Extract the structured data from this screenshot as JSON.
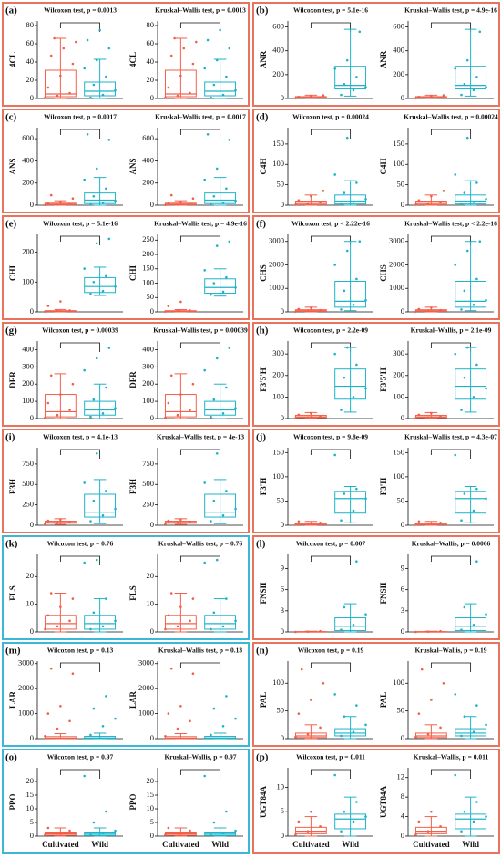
{
  "chart_data": [
    {
      "type": "box",
      "label": "(a)",
      "border": "#e9735c",
      "ylabel": "4CL",
      "plots": [
        {
          "title": "Wilcoxon test, p = 0.0013",
          "ylim": [
            0,
            85
          ],
          "yticks": [
            0,
            20,
            40,
            60,
            80
          ]
        },
        {
          "title": "Kruskal–Wallis test, p = 0.0013",
          "ylim": [
            0,
            85
          ],
          "yticks": [
            0,
            20,
            40,
            60,
            80
          ]
        }
      ],
      "series": [
        {
          "color": "#f2604a",
          "box": [
            0,
            2,
            5,
            31,
            66
          ],
          "points": [
            1,
            3,
            6,
            12,
            25,
            38,
            47,
            55,
            62,
            66
          ]
        },
        {
          "color": "#1fb3c8",
          "box": [
            0,
            3,
            8,
            18,
            43
          ],
          "points": [
            1,
            4,
            9,
            15,
            24,
            33,
            42,
            55,
            64,
            75
          ]
        }
      ]
    },
    {
      "type": "box",
      "label": "(b)",
      "border": "#e9735c",
      "ylabel": "ANR",
      "plots": [
        {
          "title": "Wilcoxon test, p = 5.1e-16",
          "ylim": [
            0,
            650
          ],
          "yticks": [
            0,
            200,
            400,
            600
          ]
        },
        {
          "title": "Kruskal–Wallis test, p = 4.9e-16",
          "ylim": [
            0,
            650
          ],
          "yticks": [
            0,
            200,
            400,
            600
          ]
        }
      ],
      "series": [
        {
          "color": "#f2604a",
          "box": [
            2,
            6,
            10,
            16,
            28
          ],
          "points": [
            3,
            7,
            10,
            14,
            20,
            26
          ]
        },
        {
          "color": "#1fb3c8",
          "box": [
            20,
            80,
            110,
            270,
            580
          ],
          "points": [
            30,
            70,
            95,
            120,
            180,
            250,
            320,
            560
          ]
        }
      ]
    },
    {
      "type": "box",
      "label": "(c)",
      "border": "#e9735c",
      "ylabel": "ANS",
      "plots": [
        {
          "title": "Wilcoxon test, p = 0.0017",
          "ylim": [
            0,
            700
          ],
          "yticks": [
            0,
            200,
            400,
            600
          ]
        },
        {
          "title": "Kruskal–Wallis test, p = 0.0017",
          "ylim": [
            0,
            700
          ],
          "yticks": [
            0,
            200,
            400,
            600
          ]
        }
      ],
      "series": [
        {
          "color": "#f2604a",
          "box": [
            0,
            3,
            8,
            18,
            40
          ],
          "points": [
            2,
            5,
            9,
            15,
            30,
            60,
            90
          ]
        },
        {
          "color": "#1fb3c8",
          "box": [
            0,
            15,
            45,
            110,
            250
          ],
          "points": [
            5,
            20,
            40,
            80,
            150,
            230,
            330,
            590,
            640
          ]
        }
      ]
    },
    {
      "type": "box",
      "label": "(d)",
      "border": "#e9735c",
      "ylabel": "C4H",
      "plots": [
        {
          "title": "Wilcoxon test, p = 0.00024",
          "ylim": [
            0,
            190
          ],
          "yticks": [
            0,
            50,
            100,
            150
          ]
        },
        {
          "title": "Kruskal–Wallis test, p = 0.00024",
          "ylim": [
            0,
            190
          ],
          "yticks": [
            0,
            50,
            100,
            150
          ]
        }
      ],
      "series": [
        {
          "color": "#f2604a",
          "box": [
            0,
            1,
            4,
            10,
            25
          ],
          "points": [
            1,
            3,
            6,
            12,
            22,
            35
          ]
        },
        {
          "color": "#1fb3c8",
          "box": [
            0,
            3,
            10,
            25,
            60
          ],
          "points": [
            2,
            8,
            15,
            30,
            55,
            75,
            165
          ]
        }
      ]
    },
    {
      "type": "box",
      "label": "(e)",
      "border": "#e9735c",
      "ylabel": "CHI",
      "plots": [
        {
          "title": "Wilcoxon test, p = 5.1e-16",
          "ylim": [
            0,
            260
          ],
          "yticks": [
            0,
            100,
            200
          ]
        },
        {
          "title": "Kruskal–Wallis test, p = 4.9e-16",
          "ylim": [
            0,
            270
          ],
          "yticks": [
            0,
            50,
            100,
            150,
            200,
            250
          ]
        }
      ],
      "series": [
        {
          "color": "#f2604a",
          "box": [
            0,
            1,
            2,
            4,
            8
          ],
          "points": [
            1,
            3,
            5,
            20,
            35
          ]
        },
        {
          "color": "#1fb3c8",
          "box": [
            55,
            65,
            85,
            115,
            150
          ],
          "points": [
            60,
            70,
            85,
            100,
            120,
            145,
            230,
            245
          ]
        }
      ]
    },
    {
      "type": "box",
      "label": "(f)",
      "border": "#e9735c",
      "ylabel": "CHS",
      "plots": [
        {
          "title": "Wilcoxon test, p < 2.22e-16",
          "ylim": [
            0,
            3300
          ],
          "yticks": [
            0,
            1000,
            2000,
            3000
          ]
        },
        {
          "title": "Kruskal–Wallis test, p < 2.2e-16",
          "ylim": [
            0,
            3300
          ],
          "yticks": [
            0,
            1000,
            2000,
            3000
          ]
        }
      ],
      "series": [
        {
          "color": "#f2604a",
          "box": [
            0,
            20,
            50,
            90,
            200
          ],
          "points": [
            10,
            40,
            70,
            120,
            180
          ]
        },
        {
          "color": "#1fb3c8",
          "box": [
            50,
            200,
            450,
            1300,
            3000
          ],
          "points": [
            100,
            300,
            500,
            900,
            1400,
            2000,
            2600,
            3000
          ]
        }
      ]
    },
    {
      "type": "box",
      "label": "(g)",
      "border": "#e9735c",
      "ylabel": "DFR",
      "plots": [
        {
          "title": "Wilcoxon test, p = 0.00039",
          "ylim": [
            0,
            450
          ],
          "yticks": [
            0,
            100,
            200,
            300,
            400
          ]
        },
        {
          "title": "Kruskal–Wallis test, p = 0.00039",
          "ylim": [
            0,
            450
          ],
          "yticks": [
            0,
            100,
            200,
            300,
            400
          ]
        }
      ],
      "series": [
        {
          "color": "#f2604a",
          "box": [
            0,
            10,
            40,
            140,
            260
          ],
          "points": [
            5,
            20,
            50,
            90,
            140,
            200,
            250
          ]
        },
        {
          "color": "#1fb3c8",
          "box": [
            0,
            20,
            50,
            100,
            200
          ],
          "points": [
            10,
            30,
            60,
            110,
            180,
            280,
            350,
            410
          ]
        }
      ]
    },
    {
      "type": "box",
      "label": "(h)",
      "border": "#e9735c",
      "ylabel": "F3'5'H",
      "plots": [
        {
          "title": "Wilcoxon test, p = 2.2e-09",
          "ylim": [
            0,
            360
          ],
          "yticks": [
            0,
            100,
            200,
            300
          ]
        },
        {
          "title": "Kruskal–Wallis, p = 2.1e-09",
          "ylim": [
            0,
            360
          ],
          "yticks": [
            0,
            100,
            200,
            300
          ]
        }
      ],
      "series": [
        {
          "color": "#f2604a",
          "box": [
            0,
            4,
            8,
            15,
            28
          ],
          "points": [
            2,
            6,
            10,
            18,
            25
          ]
        },
        {
          "color": "#1fb3c8",
          "box": [
            30,
            90,
            150,
            230,
            330
          ],
          "points": [
            40,
            100,
            140,
            190,
            250,
            300,
            330
          ]
        }
      ]
    },
    {
      "type": "box",
      "label": "(i)",
      "border": "#e9735c",
      "ylabel": "F3H",
      "plots": [
        {
          "title": "Wilcoxon test, p = 4.1e-13",
          "ylim": [
            0,
            950
          ],
          "yticks": [
            0,
            250,
            500,
            750
          ]
        },
        {
          "title": "Kruskal–Wallis test, p = 4e-13",
          "ylim": [
            0,
            950
          ],
          "yticks": [
            0,
            250,
            500,
            750
          ]
        }
      ],
      "series": [
        {
          "color": "#f2604a",
          "box": [
            10,
            25,
            35,
            50,
            80
          ],
          "points": [
            15,
            30,
            40,
            55,
            70
          ]
        },
        {
          "color": "#1fb3c8",
          "box": [
            20,
            100,
            160,
            380,
            560
          ],
          "points": [
            50,
            120,
            200,
            300,
            420,
            520,
            880
          ]
        }
      ]
    },
    {
      "type": "box",
      "label": "(j)",
      "border": "#e9735c",
      "ylabel": "F3'H",
      "plots": [
        {
          "title": "Wilcoxon test, p = 9.8e-09",
          "ylim": [
            0,
            160
          ],
          "yticks": [
            0,
            50,
            100,
            150
          ]
        },
        {
          "title": "Kruskal–Wallis test, p = 4.3e-07",
          "ylim": [
            0,
            160
          ],
          "yticks": [
            0,
            50,
            100,
            150
          ]
        }
      ],
      "series": [
        {
          "color": "#f2604a",
          "box": [
            0,
            1,
            2,
            4,
            8
          ],
          "points": [
            1,
            3,
            5,
            8
          ]
        },
        {
          "color": "#1fb3c8",
          "box": [
            5,
            25,
            55,
            70,
            80
          ],
          "points": [
            10,
            30,
            55,
            65,
            75,
            145
          ]
        }
      ]
    },
    {
      "type": "box",
      "label": "(k)",
      "border": "#3db7d6",
      "ylabel": "FLS",
      "plots": [
        {
          "title": "Wilcoxon test, p = 0.76",
          "ylim": [
            0,
            28
          ],
          "yticks": [
            0,
            10,
            20
          ]
        },
        {
          "title": "Kruskal–Wallis test, p = 0.76",
          "ylim": [
            0,
            28
          ],
          "yticks": [
            0,
            10,
            20
          ]
        }
      ],
      "series": [
        {
          "color": "#f2604a",
          "box": [
            0,
            1,
            3,
            6,
            14
          ],
          "points": [
            1,
            2,
            4,
            6,
            9,
            12,
            14
          ]
        },
        {
          "color": "#1fb3c8",
          "box": [
            0,
            1,
            3,
            6,
            12
          ],
          "points": [
            1,
            2,
            4,
            7,
            12,
            25,
            26
          ]
        }
      ]
    },
    {
      "type": "box",
      "label": "(l)",
      "border": "#e9735c",
      "ylabel": "FNSII",
      "plots": [
        {
          "title": "Wilcoxon test, p = 0.007",
          "ylim": [
            0,
            11
          ],
          "yticks": [
            0,
            3,
            6,
            9
          ]
        },
        {
          "title": "Kruskal–Wallis, p = 0.0066",
          "ylim": [
            0,
            11
          ],
          "yticks": [
            0,
            3,
            6,
            9
          ]
        }
      ],
      "series": [
        {
          "color": "#f2604a",
          "box": [
            0,
            0,
            0,
            0.05,
            0.1
          ],
          "points": [
            0,
            0.05,
            0.1
          ]
        },
        {
          "color": "#1fb3c8",
          "box": [
            0,
            0.2,
            0.8,
            2,
            4
          ],
          "points": [
            0.3,
            1,
            2.5,
            3.5,
            10
          ]
        }
      ]
    },
    {
      "type": "box",
      "label": "(m)",
      "border": "#3db7d6",
      "ylabel": "LAR",
      "plots": [
        {
          "title": "Wilcoxon test, p = 0.13",
          "ylim": [
            0,
            3100
          ],
          "yticks": [
            0,
            1000,
            2000,
            3000
          ]
        },
        {
          "title": "Kruskal–Wallis test, p = 0.13",
          "ylim": [
            0,
            3100
          ],
          "yticks": [
            0,
            1000,
            2000,
            3000
          ]
        }
      ],
      "series": [
        {
          "color": "#f2604a",
          "box": [
            0,
            5,
            20,
            80,
            200
          ],
          "points": [
            100,
            400,
            700,
            1000,
            1300,
            2600,
            2800
          ]
        },
        {
          "color": "#1fb3c8",
          "box": [
            0,
            10,
            30,
            90,
            220
          ],
          "points": [
            150,
            500,
            800,
            1200,
            1700
          ]
        }
      ]
    },
    {
      "type": "box",
      "label": "(n)",
      "border": "#e9735c",
      "ylabel": "PAL",
      "plots": [
        {
          "title": "Wilcoxon test, p = 0.19",
          "ylim": [
            0,
            140
          ],
          "yticks": [
            0,
            50,
            100
          ]
        },
        {
          "title": "Kruskal–Wallis, p = 0.19",
          "ylim": [
            0,
            140
          ],
          "yticks": [
            0,
            50,
            100
          ]
        }
      ],
      "series": [
        {
          "color": "#f2604a",
          "box": [
            0,
            2,
            5,
            10,
            25
          ],
          "points": [
            3,
            8,
            20,
            45,
            70,
            100,
            125
          ]
        },
        {
          "color": "#1fb3c8",
          "box": [
            0,
            5,
            10,
            18,
            40
          ],
          "points": [
            5,
            12,
            25,
            40,
            60,
            80
          ]
        }
      ]
    },
    {
      "type": "box",
      "label": "(o)",
      "border": "#3db7d6",
      "ylabel": "PPO",
      "categories": [
        "Cultivated",
        "Wild"
      ],
      "plots": [
        {
          "title": "Wilcoxon test, p = 0.97",
          "ylim": [
            0,
            25
          ],
          "yticks": [
            0,
            5,
            10,
            15,
            20
          ]
        },
        {
          "title": "Kruskal–Wallis, p = 0.97",
          "ylim": [
            0,
            25
          ],
          "yticks": [
            0,
            5,
            10,
            15,
            20
          ]
        }
      ],
      "series": [
        {
          "color": "#f2604a",
          "box": [
            0,
            0.3,
            0.8,
            1.5,
            3
          ],
          "points": [
            0.5,
            1,
            2,
            3
          ]
        },
        {
          "color": "#1fb3c8",
          "box": [
            0,
            0.2,
            0.7,
            1.5,
            3
          ],
          "points": [
            0.5,
            1,
            2,
            5,
            9,
            22
          ]
        }
      ]
    },
    {
      "type": "box",
      "label": "(p)",
      "border": "#e9735c",
      "ylabel": "UGT84A",
      "categories": [
        "Cultivated",
        "Wild"
      ],
      "plots": [
        {
          "title": "Wilcoxon test, p = 0.011",
          "ylim": [
            0,
            14
          ],
          "yticks": [
            0,
            5,
            10
          ]
        },
        {
          "title": "Kruskal–Wallis, p = 0.011",
          "ylim": [
            0,
            14
          ],
          "yticks": [
            0,
            4,
            8,
            12
          ]
        }
      ],
      "series": [
        {
          "color": "#f2604a",
          "box": [
            0,
            0.5,
            1,
            1.8,
            4
          ],
          "points": [
            0.3,
            1,
            2,
            3,
            5
          ]
        },
        {
          "color": "#1fb3c8",
          "box": [
            0,
            1.5,
            3.5,
            4.5,
            8
          ],
          "points": [
            1,
            3,
            4,
            5,
            7,
            12.5
          ]
        }
      ]
    }
  ]
}
